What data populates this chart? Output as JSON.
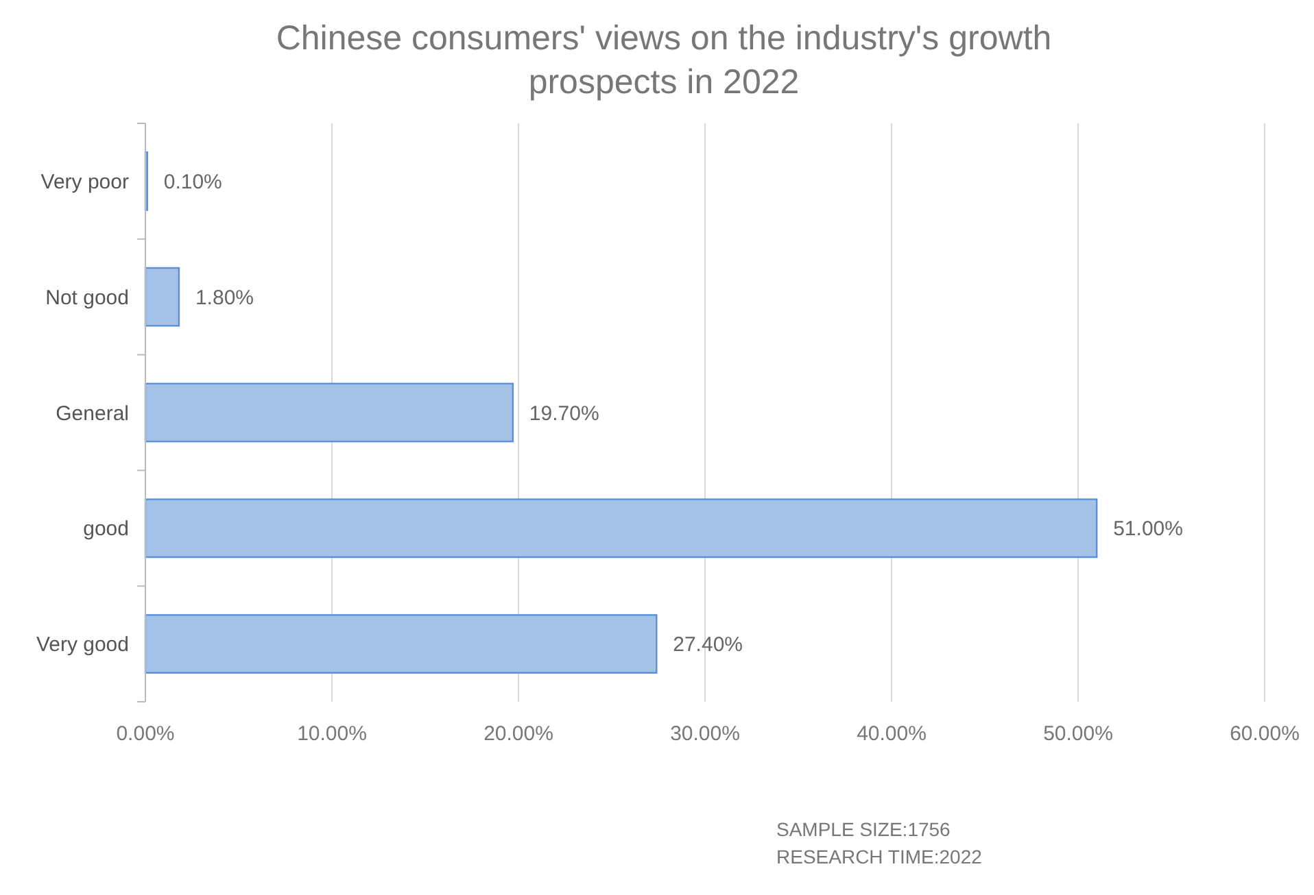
{
  "chart_data": {
    "type": "bar",
    "orientation": "horizontal",
    "title": "Chinese consumers' views on the industry's growth prospects in 2022",
    "categories": [
      "Very poor",
      "Not good",
      "General",
      "good",
      "Very good"
    ],
    "values": [
      0.1,
      1.8,
      19.7,
      51.0,
      27.4
    ],
    "value_labels": [
      "0.10%",
      "1.80%",
      "19.70%",
      "51.00%",
      "27.40%"
    ],
    "color": "#a4c2e8",
    "xlim": [
      0,
      60
    ],
    "xticks": [
      {
        "value": 0,
        "label": "0.00%"
      },
      {
        "value": 10,
        "label": "10.00%"
      },
      {
        "value": 20,
        "label": "20.00%"
      },
      {
        "value": 30,
        "label": "30.00%"
      },
      {
        "value": 40,
        "label": "40.00%"
      },
      {
        "value": 50,
        "label": "50.00%"
      },
      {
        "value": 60,
        "label": "60.00%"
      }
    ],
    "grid": "x",
    "annotations": [
      "SAMPLE SIZE:1756",
      "RESEARCH TIME:2022"
    ]
  }
}
